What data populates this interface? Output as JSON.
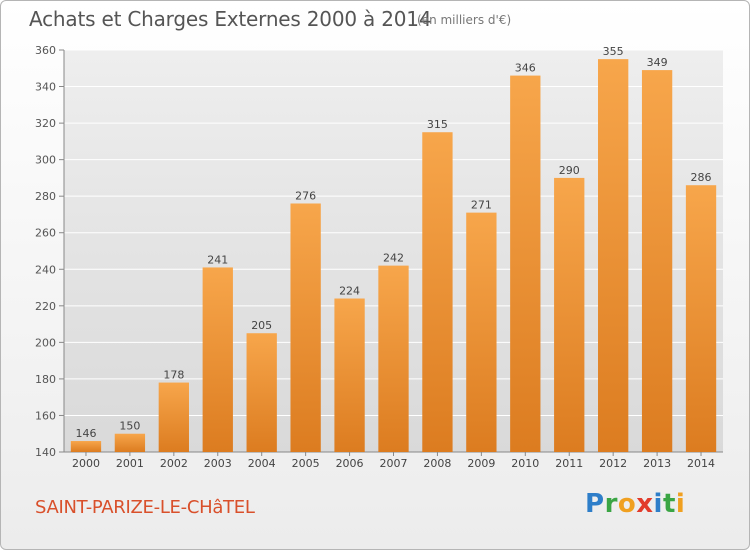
{
  "title": "Achats et Charges Externes 2000 à 2014",
  "unit": "(en milliers d'€)",
  "commune": "SAINT-PARIZE-LE-CHâTEL",
  "brand": {
    "letters": [
      {
        "ch": "P",
        "color": "#2e7ec9"
      },
      {
        "ch": "r",
        "color": "#3aa544"
      },
      {
        "ch": "o",
        "color": "#f0a020"
      },
      {
        "ch": "x",
        "color": "#e23b2b"
      },
      {
        "ch": "i",
        "color": "#2e7ec9"
      },
      {
        "ch": "t",
        "color": "#3aa544"
      },
      {
        "ch": "i",
        "color": "#f0a020"
      }
    ]
  },
  "chart_data": {
    "type": "bar",
    "categories": [
      "2000",
      "2001",
      "2002",
      "2003",
      "2004",
      "2005",
      "2006",
      "2007",
      "2008",
      "2009",
      "2010",
      "2011",
      "2012",
      "2013",
      "2014"
    ],
    "values": [
      146,
      150,
      178,
      241,
      205,
      276,
      224,
      242,
      315,
      271,
      346,
      290,
      355,
      349,
      286
    ],
    "ylim": [
      140,
      360
    ],
    "yticks": [
      140,
      160,
      180,
      200,
      220,
      240,
      260,
      280,
      300,
      320,
      340,
      360
    ],
    "grid": true,
    "bar_color": "#f29a3c",
    "bar_color_dark": "#d97a1e"
  }
}
